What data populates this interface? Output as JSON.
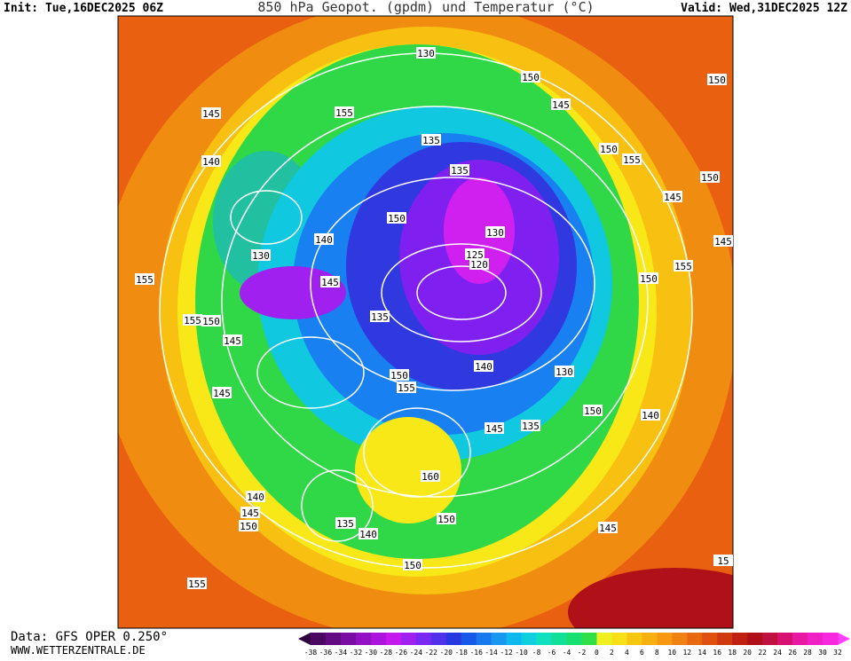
{
  "header": {
    "init": "Init: Tue,16DEC2025 06Z",
    "title": "850 hPa Geopot. (gpdm) und Temperatur (°C)",
    "valid": "Valid: Wed,31DEC2025 12Z"
  },
  "footer": {
    "data": "Data: GFS OPER 0.250°",
    "site": "WWW.WETTERZENTRALE.DE"
  },
  "colorbar": {
    "labels": [
      -38,
      -36,
      -34,
      -32,
      -30,
      -28,
      -26,
      -24,
      -22,
      -20,
      -18,
      -16,
      -14,
      -12,
      -10,
      -8,
      -6,
      -4,
      -2,
      0,
      2,
      4,
      6,
      8,
      10,
      12,
      14,
      16,
      18,
      20,
      22,
      24,
      26,
      28,
      30,
      32
    ],
    "colors": [
      "#4b0860",
      "#620a82",
      "#7a0ca4",
      "#9410c4",
      "#ad14dc",
      "#c418ec",
      "#a020f0",
      "#7828f0",
      "#5030e8",
      "#2838e0",
      "#1858e8",
      "#1878f0",
      "#1898f0",
      "#10b8f0",
      "#10d0e0",
      "#10e0c0",
      "#10e098",
      "#18e070",
      "#30e048",
      "#f0f020",
      "#f8e018",
      "#f8c810",
      "#f8b010",
      "#f89810",
      "#f08010",
      "#e86810",
      "#e05010",
      "#d03810",
      "#c02010",
      "#b01018",
      "#c01040",
      "#d81070",
      "#e818a0",
      "#f020c8",
      "#f828e0"
    ]
  },
  "map": {
    "contour_labels": [
      "130",
      "150",
      "150",
      "145",
      "145",
      "155",
      "135",
      "140",
      "150",
      "135",
      "150",
      "155",
      "145",
      "130",
      "140",
      "145",
      "125",
      "120",
      "130",
      "150",
      "155",
      "135",
      "155",
      "150",
      "145",
      "150",
      "140",
      "145",
      "155",
      "150",
      "140",
      "130",
      "150",
      "155",
      "145",
      "135",
      "145",
      "135",
      "160",
      "140",
      "145",
      "150",
      "135",
      "140",
      "145",
      "150",
      "155",
      "150",
      "15"
    ]
  }
}
